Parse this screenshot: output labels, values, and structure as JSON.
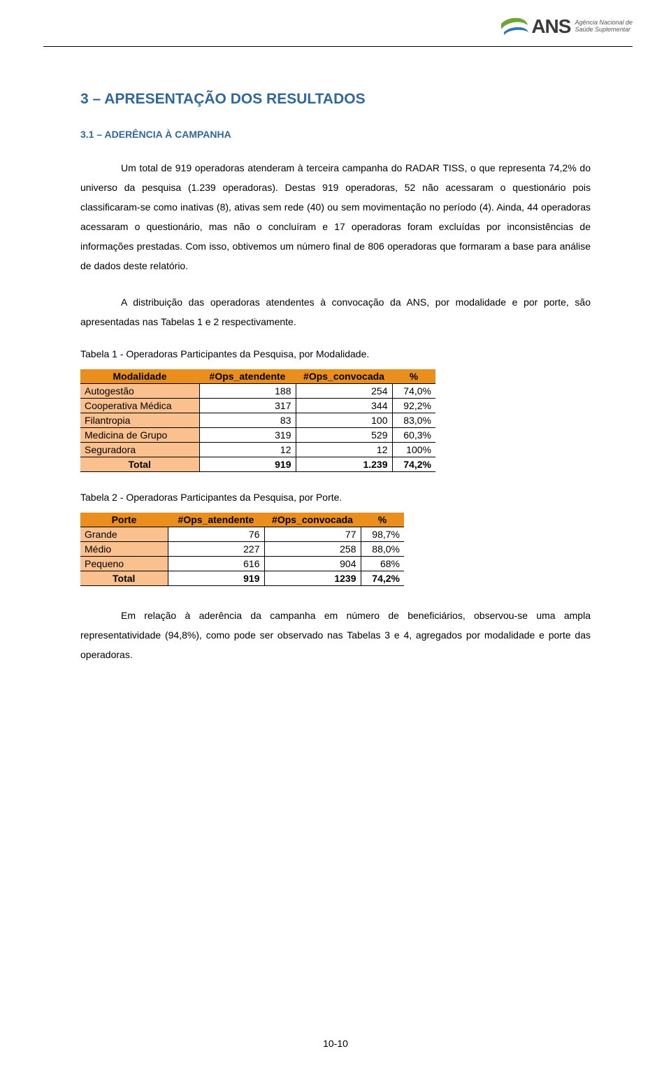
{
  "logo": {
    "ans": "ANS",
    "line1": "Agência Nacional de",
    "line2": "Saúde Suplementar"
  },
  "title": "3 – APRESENTAÇÃO DOS RESULTADOS",
  "subtitle": "3.1 – ADERÊNCIA À CAMPANHA",
  "para1": "Um total de 919 operadoras atenderam à terceira campanha do RADAR TISS, o que representa 74,2% do universo da pesquisa (1.239 operadoras). Destas 919 operadoras, 52 não acessaram o questionário pois classificaram-se como inativas (8), ativas sem rede (40) ou sem movimentação no período (4). Ainda, 44 operadoras acessaram o questionário, mas não o concluíram  e 17 operadoras foram excluídas por inconsistências de informações prestadas. Com isso, obtivemos um número final de 806 operadoras que formaram a base para análise de dados deste relatório.",
  "para2": "A distribuição das operadoras atendentes à convocação da ANS, por modalidade e por porte, são apresentadas nas Tabelas 1 e 2 respectivamente.",
  "table1": {
    "caption": "Tabela 1 - Operadoras Participantes da Pesquisa, por Modalidade.",
    "headers": [
      "Modalidade",
      "#Ops_atendente",
      "#Ops_convocada",
      "%"
    ],
    "rows": [
      [
        "Autogestão",
        "188",
        "254",
        "74,0%"
      ],
      [
        "Cooperativa Médica",
        "317",
        "344",
        "92,2%"
      ],
      [
        "Filantropia",
        "83",
        "100",
        "83,0%"
      ],
      [
        "Medicina de Grupo",
        "319",
        "529",
        "60,3%"
      ],
      [
        "Seguradora",
        "12",
        "12",
        "100%"
      ]
    ],
    "total": [
      "Total",
      "919",
      "1.239",
      "74,2%"
    ]
  },
  "table2": {
    "caption": "Tabela 2 - Operadoras Participantes da Pesquisa, por Porte.",
    "headers": [
      "Porte",
      "#Ops_atendente",
      "#Ops_convocada",
      "%"
    ],
    "rows": [
      [
        "Grande",
        "76",
        "77",
        "98,7%"
      ],
      [
        "Médio",
        "227",
        "258",
        "88,0%"
      ],
      [
        "Pequeno",
        "616",
        "904",
        "68%"
      ]
    ],
    "total": [
      "Total",
      "919",
      "1239",
      "74,2%"
    ]
  },
  "para3": "Em relação à aderência da campanha em número de beneficiários, observou-se uma ampla representatividade (94,8%), como pode ser observado nas Tabelas 3 e 4, agregados por modalidade e porte das operadoras.",
  "footer": "10-10",
  "colors": {
    "header_bg": "#ea8f1d",
    "row_label_bg": "#fac18e",
    "heading_color": "#33669a"
  }
}
